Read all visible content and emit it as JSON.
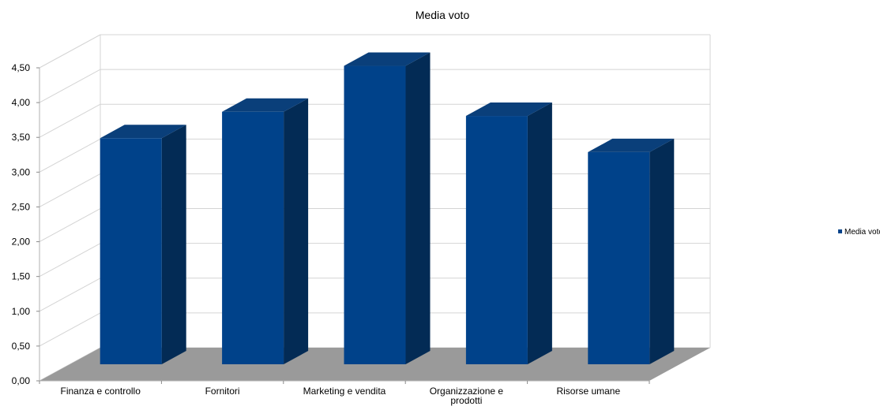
{
  "chart_data": {
    "type": "bar",
    "title": "Media voto",
    "categories": [
      "Finanza e controllo",
      "Fornitori",
      "Marketing e vendita",
      "Organizzazione e prodotti",
      "Risorse umane"
    ],
    "category_label_lines": [
      [
        "Finanza e controllo"
      ],
      [
        "Fornitori"
      ],
      [
        "Marketing e vendita"
      ],
      [
        "Organizzazione e",
        "prodotti"
      ],
      [
        "Risorse umane"
      ]
    ],
    "series": [
      {
        "name": "Media voto",
        "values": [
          3.25,
          3.63,
          4.29,
          3.57,
          3.05
        ]
      }
    ],
    "y_ticks": [
      "0,00",
      "0,50",
      "1,00",
      "1,50",
      "2,00",
      "2,50",
      "3,00",
      "3,50",
      "4,00",
      "4,50"
    ],
    "ylim": [
      0,
      4.5
    ],
    "grid": true,
    "style": "3d",
    "legend_position": "right",
    "colors": {
      "bar_front": "#00428A",
      "bar_top": "#0A3F7A",
      "bar_side": "#032B55",
      "floor": "#9A9A9A",
      "grid": "#D4D4D4",
      "legend_marker": "#00428A"
    }
  }
}
